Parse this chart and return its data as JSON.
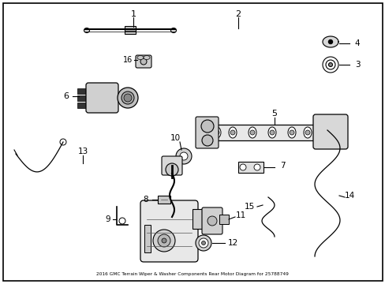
{
  "title": "2016 GMC Terrain Wiper & Washer Components Rear Motor Diagram for 25788749",
  "background_color": "#ffffff",
  "border_color": "#000000",
  "text_color": "#000000",
  "fig_width": 4.89,
  "fig_height": 3.6,
  "dpi": 100
}
